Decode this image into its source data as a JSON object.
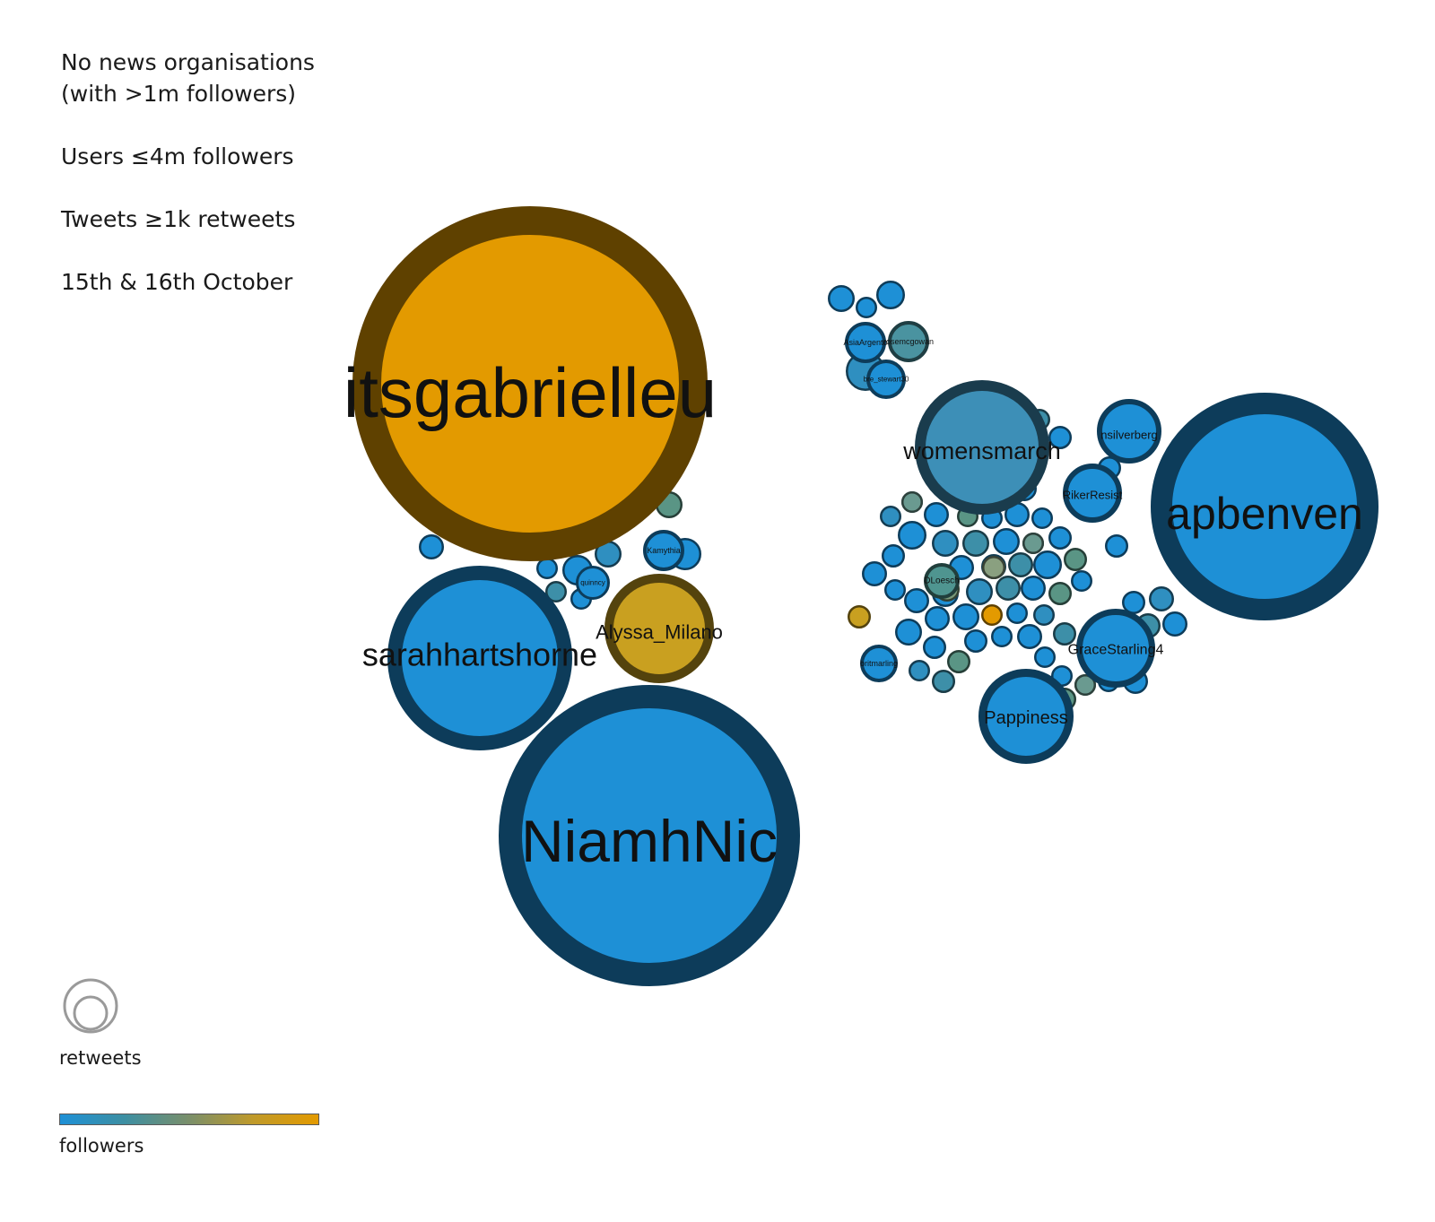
{
  "filters": [
    "No news organisations\n(with >1m followers)",
    "Users ≤4m followers",
    "Tweets ≥1k retweets",
    "15th & 16th October"
  ],
  "legend": {
    "size_label": "retweets",
    "color_label": "followers",
    "gradient_low": "#1e90d6",
    "gradient_high": "#e39a00"
  },
  "chart_data": {
    "type": "bubble",
    "size_encoding": "retweets",
    "color_encoding": "followers",
    "labeled_nodes": [
      {
        "label": "itsgabrielleu",
        "color": "#e39a00"
      },
      {
        "label": "NiamhNic",
        "color": "#1e90d6"
      },
      {
        "label": "apbenven",
        "color": "#1e90d6"
      },
      {
        "label": "sarahhartshorne",
        "color": "#1e90d6"
      },
      {
        "label": "womensmarch",
        "color": "#3d8fb7"
      },
      {
        "label": "Alyssa_Milano",
        "color": "#c9a020"
      },
      {
        "label": "Pappiness",
        "color": "#1e90d6"
      },
      {
        "label": "GraceStarling4",
        "color": "#1e90d6"
      },
      {
        "label": "RikerResist",
        "color": "#1e90d6"
      },
      {
        "label": "nsilverberg",
        "color": "#1e90d6"
      },
      {
        "label": "Kamythia",
        "color": "#1e90d6"
      },
      {
        "label": "DLoesch",
        "color": "#4f9590"
      },
      {
        "label": "AsiaArgento",
        "color": "#1e90d6"
      },
      {
        "label": "rosemcgowan",
        "color": "#4a93a0"
      },
      {
        "label": "britmarling",
        "color": "#1e90d6"
      },
      {
        "label": "bre_stewart30",
        "color": "#1e90d6"
      },
      {
        "label": "quinncy",
        "color": "#1e90d6"
      }
    ]
  }
}
